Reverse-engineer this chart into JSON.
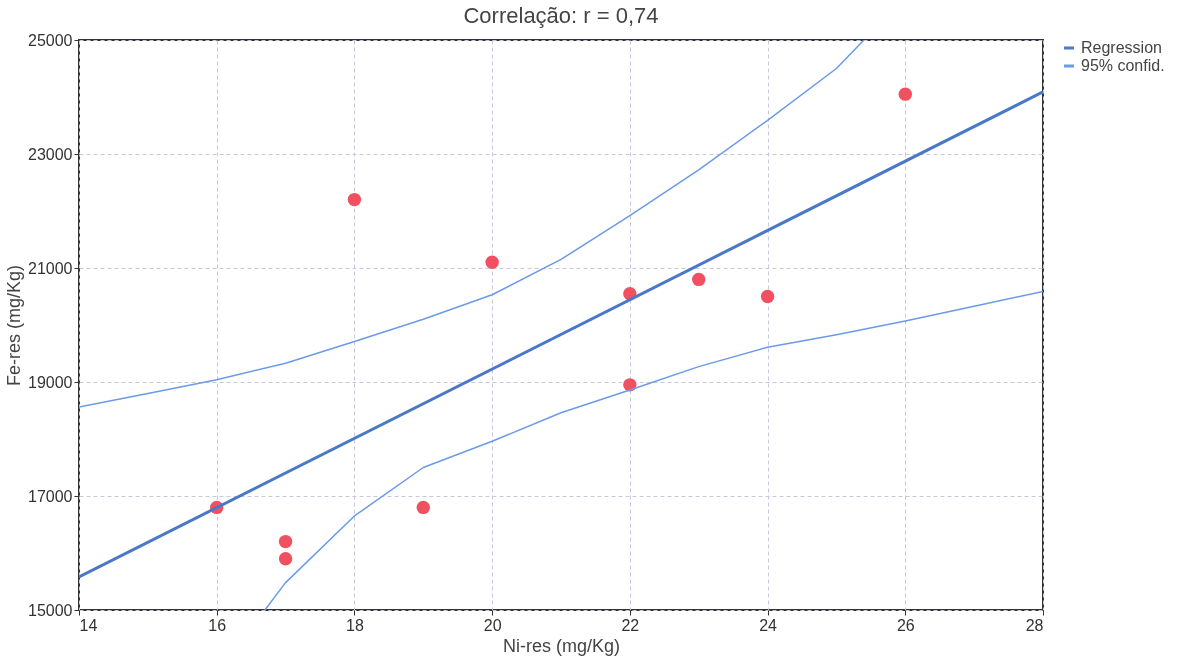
{
  "chart_data": {
    "type": "scatter",
    "title": "Correlação: r = 0,74",
    "xlabel": "Ni-res (mg/Kg)",
    "ylabel": "Fe-res (mg/Kg)",
    "xlim": [
      14,
      28
    ],
    "xticks": [
      14,
      16,
      18,
      20,
      22,
      24,
      26,
      28
    ],
    "ylim": [
      15000,
      25000
    ],
    "yticks": [
      15000,
      17000,
      19000,
      21000,
      23000,
      25000
    ],
    "grid": true,
    "legend": "right",
    "series": [
      {
        "color": "#f0505f",
        "marker": "circle",
        "x": [
          16,
          17,
          17,
          18,
          19,
          20,
          22,
          22,
          23,
          24,
          26
        ],
        "values": [
          16800,
          16200,
          15900,
          22200,
          16800,
          21100,
          20550,
          18950,
          20800,
          20500,
          24050
        ]
      },
      {
        "type": "line",
        "name": "Regression",
        "color": "#4a78c8",
        "line_style": "solid",
        "marker": "none",
        "x": [
          14,
          28
        ],
        "values": [
          15580,
          24090
        ]
      },
      {
        "type": "line",
        "name": "95% confid.",
        "color": "#6a9ae8",
        "line_style": "solid",
        "marker": "none",
        "x": [
          14,
          15,
          16,
          17,
          18,
          19,
          20,
          21,
          22,
          23,
          24,
          25,
          25.4
        ],
        "values": [
          18560,
          18800,
          19040,
          19330,
          19710,
          20100,
          20530,
          21150,
          21920,
          22720,
          23590,
          24500,
          25000
        ]
      },
      {
        "type": "line",
        "color": "#6a9ae8",
        "line_style": "solid",
        "marker": "none",
        "x": [
          16.7,
          17,
          18,
          19,
          20,
          21,
          22,
          23,
          24,
          25,
          26,
          27,
          28
        ],
        "values": [
          15000,
          15480,
          16650,
          17500,
          17960,
          18460,
          18860,
          19270,
          19610,
          19830,
          20070,
          20330,
          20590
        ]
      }
    ]
  }
}
